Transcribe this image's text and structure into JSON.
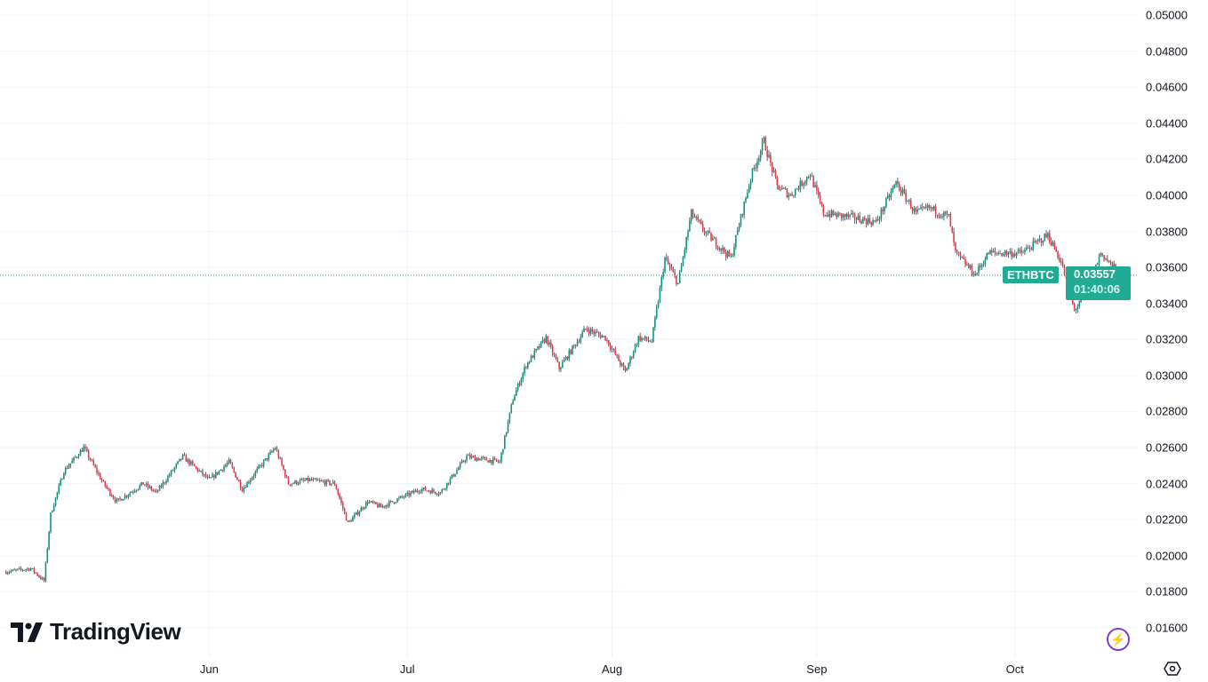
{
  "symbol": "ETHBTC",
  "last_price": "0.03557",
  "countdown": "01:40:06",
  "brand": "TradingView",
  "colors": {
    "up": "#089981",
    "down": "#f23645",
    "accent": "#22ab94",
    "grid": "#f0f3fa"
  },
  "icons": {
    "bolt": "lightning-bolt-icon",
    "settings": "gear-icon"
  },
  "chart_data": {
    "type": "candlestick",
    "title": "",
    "grid": true,
    "y_ticks": [
      "0.05000",
      "0.04800",
      "0.04600",
      "0.04400",
      "0.04200",
      "0.04000",
      "0.03800",
      "0.03600",
      "0.03400",
      "0.03200",
      "0.03000",
      "0.02800",
      "0.02600",
      "0.02400",
      "0.02200",
      "0.02000",
      "0.01800",
      "0.01600"
    ],
    "ylim": [
      0.016,
      0.05
    ],
    "x_ticks": [
      "Jun",
      "Jul",
      "Aug",
      "Sep",
      "Oct"
    ],
    "approx_closes": [
      [
        "05-01",
        0.0191
      ],
      [
        "05-05",
        0.0193
      ],
      [
        "05-07",
        0.0186
      ],
      [
        "05-08",
        0.0223
      ],
      [
        "05-10",
        0.0247
      ],
      [
        "05-13",
        0.026
      ],
      [
        "05-16",
        0.024
      ],
      [
        "05-18",
        0.023
      ],
      [
        "05-22",
        0.024
      ],
      [
        "05-24",
        0.0235
      ],
      [
        "05-28",
        0.0255
      ],
      [
        "06-01",
        0.0242
      ],
      [
        "06-04",
        0.0252
      ],
      [
        "06-06",
        0.0237
      ],
      [
        "06-11",
        0.026
      ],
      [
        "06-13",
        0.024
      ],
      [
        "06-16",
        0.0242
      ],
      [
        "06-20",
        0.024
      ],
      [
        "06-22",
        0.0218
      ],
      [
        "06-25",
        0.023
      ],
      [
        "06-27",
        0.0227
      ],
      [
        "07-03",
        0.0237
      ],
      [
        "07-06",
        0.0235
      ],
      [
        "07-10",
        0.0255
      ],
      [
        "07-15",
        0.0252
      ],
      [
        "07-17",
        0.0287
      ],
      [
        "07-19",
        0.0306
      ],
      [
        "07-22",
        0.0321
      ],
      [
        "07-24",
        0.0304
      ],
      [
        "07-28",
        0.0326
      ],
      [
        "07-31",
        0.0321
      ],
      [
        "08-03",
        0.0302
      ],
      [
        "08-05",
        0.0321
      ],
      [
        "08-07",
        0.0319
      ],
      [
        "08-09",
        0.0365
      ],
      [
        "08-11",
        0.0351
      ],
      [
        "08-13",
        0.039
      ],
      [
        "08-15",
        0.038
      ],
      [
        "08-19",
        0.0365
      ],
      [
        "08-20",
        0.038
      ],
      [
        "08-22",
        0.041
      ],
      [
        "08-24",
        0.043
      ],
      [
        "08-26",
        0.0405
      ],
      [
        "08-28",
        0.04
      ],
      [
        "08-31",
        0.0412
      ],
      [
        "09-02",
        0.039
      ],
      [
        "09-06",
        0.0388
      ],
      [
        "09-10",
        0.0385
      ],
      [
        "09-13",
        0.0407
      ],
      [
        "09-16",
        0.039
      ],
      [
        "09-18",
        0.0393
      ],
      [
        "09-21",
        0.0388
      ],
      [
        "09-22",
        0.0368
      ],
      [
        "09-25",
        0.0356
      ],
      [
        "09-27",
        0.0368
      ],
      [
        "10-02",
        0.0368
      ],
      [
        "10-06",
        0.0378
      ],
      [
        "10-08",
        0.0363
      ],
      [
        "10-10",
        0.0336
      ],
      [
        "10-12",
        0.0348
      ],
      [
        "10-14",
        0.0368
      ],
      [
        "10-17",
        0.03557
      ]
    ]
  }
}
